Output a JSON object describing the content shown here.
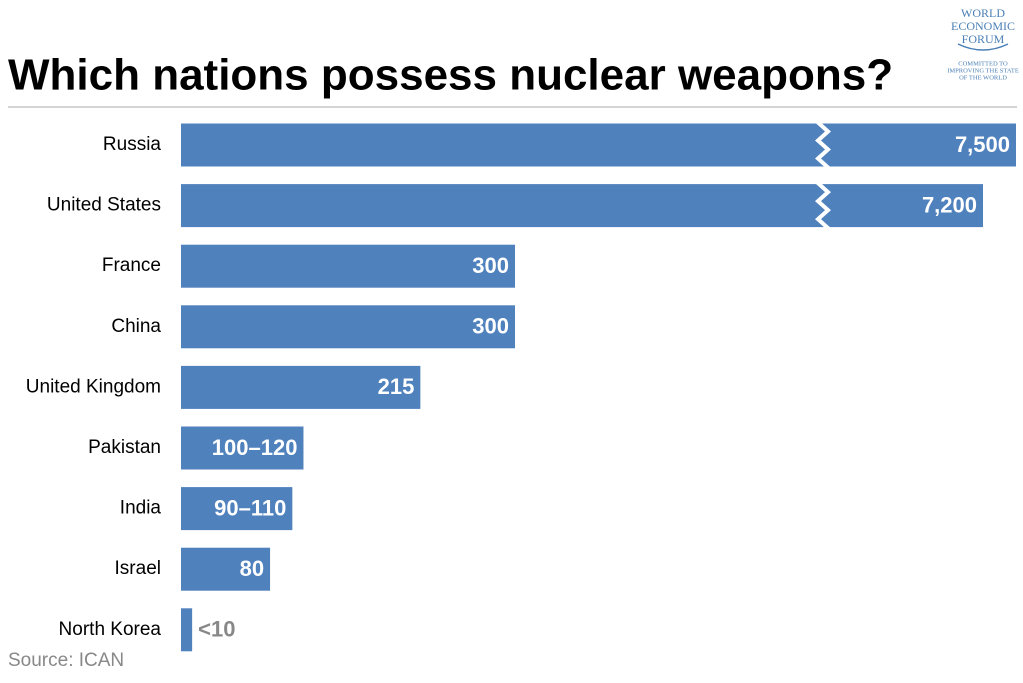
{
  "chart_data": {
    "type": "bar",
    "title": "Which nations possess nuclear weapons?",
    "source": "Source:  ICAN",
    "logo": [
      "WORLD",
      "ECONOMIC",
      "FORUM",
      "COMMITTED TO",
      "IMPROVING THE STATE",
      "OF THE WORLD"
    ],
    "categories": [
      "Russia",
      "United States",
      "France",
      "China",
      "United Kingdom",
      "Pakistan",
      "India",
      "Israel",
      "North Korea"
    ],
    "values": [
      7500,
      7200,
      300,
      300,
      215,
      110,
      100,
      80,
      10
    ],
    "value_labels": [
      "7,500",
      "7,200",
      "300",
      "300",
      "215",
      "100–120",
      "90–110",
      "80",
      "<10"
    ],
    "color": "#4f81bd",
    "axis_break": true
  }
}
